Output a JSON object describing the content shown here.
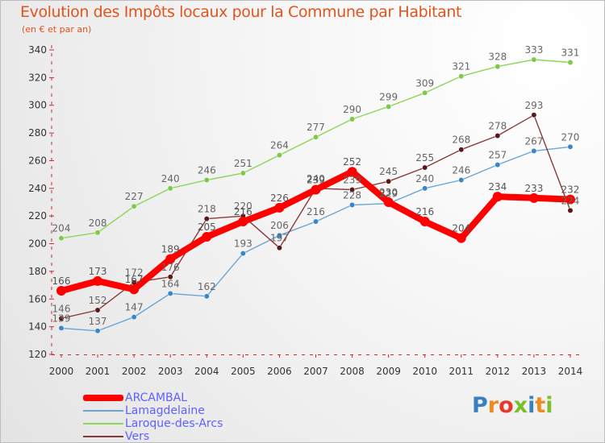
{
  "title": "Evolution des Impôts locaux pour la Commune par Habitant",
  "subtitle": "(en € et par an)",
  "logo": {
    "text": "Proxiti",
    "letter_colors": [
      "#3a7fc1",
      "#f08a1c",
      "#e8392c",
      "#7bbf2a",
      "#3a7fc1",
      "#f08a1c",
      "#7bbf2a"
    ]
  },
  "chart_data": {
    "type": "line",
    "title": "Evolution des Impôts locaux pour la Commune par Habitant",
    "subtitle": "(en € et par an)",
    "xlabel": "",
    "ylabel": "",
    "x": [
      2000,
      2001,
      2002,
      2003,
      2004,
      2005,
      2006,
      2007,
      2008,
      2009,
      2010,
      2011,
      2012,
      2013,
      2014
    ],
    "ylim": [
      120,
      340
    ],
    "yticks": [
      120,
      140,
      160,
      180,
      200,
      220,
      240,
      260,
      280,
      300,
      320,
      340
    ],
    "grid": false,
    "legend_position": "bottom-left",
    "series": [
      {
        "name": "Laroque-des-Arcs",
        "color": "#8fd459",
        "marker": "#7fc94a",
        "label_color": "#666666",
        "values": [
          204,
          208,
          227,
          240,
          246,
          251,
          264,
          277,
          290,
          299,
          309,
          321,
          328,
          333,
          331
        ]
      },
      {
        "name": "Lamagdelaine",
        "color": "#6aa5d6",
        "marker": "#3a86c6",
        "label_color": "#666666",
        "values": [
          139,
          137,
          147,
          164,
          162,
          193,
          206,
          216,
          228,
          229,
          240,
          246,
          257,
          267,
          270
        ]
      },
      {
        "name": "Vers",
        "color": "#8a3a3a",
        "marker": "#5a1818",
        "label_color": "#666666",
        "values": [
          146,
          152,
          172,
          176,
          218,
          220,
          197,
          240,
          239,
          245,
          255,
          268,
          278,
          293,
          224
        ]
      },
      {
        "name": "ARCAMBAL",
        "color": "#ff0000",
        "marker": "#ff0000",
        "label_color": "#555555",
        "values": [
          166,
          173,
          167,
          189,
          205,
          216,
          226,
          239,
          252,
          230,
          216,
          204,
          234,
          233,
          232
        ]
      }
    ],
    "legend": [
      {
        "name": "ARCAMBAL",
        "color": "#ff0000",
        "text_color": "#6060ff"
      },
      {
        "name": "Lamagdelaine",
        "color": "#6aa5d6",
        "text_color": "#6060ff"
      },
      {
        "name": "Laroque-des-Arcs",
        "color": "#8fd459",
        "text_color": "#6060ff"
      },
      {
        "name": "Vers",
        "color": "#8a3a3a",
        "text_color": "#6060ff"
      }
    ]
  }
}
